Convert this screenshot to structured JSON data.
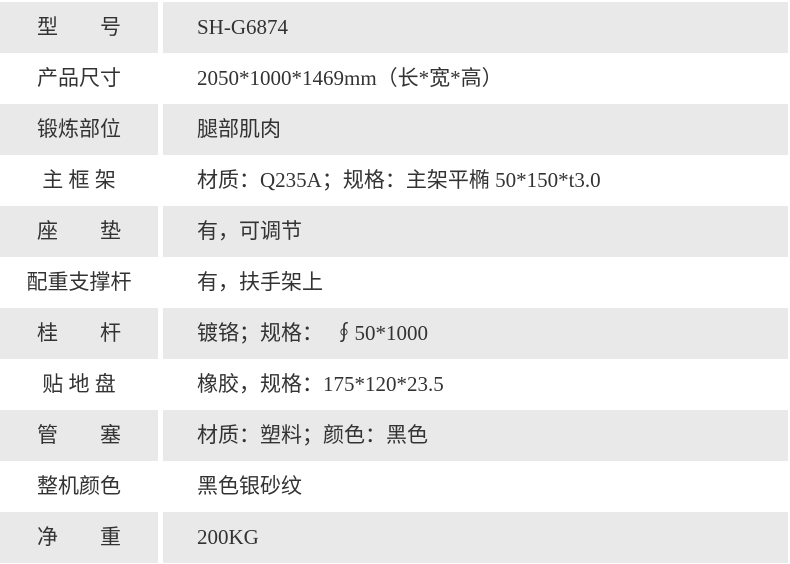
{
  "table": {
    "rows": [
      {
        "label": "型　　号",
        "value": "SH-G6874",
        "shaded": true
      },
      {
        "label": "产品尺寸",
        "value": "2050*1000*1469mm（长*宽*高）",
        "shaded": false
      },
      {
        "label": "锻炼部位",
        "value": "腿部肌肉",
        "shaded": true
      },
      {
        "label": "主 框 架",
        "value": "材质：Q235A；规格：主架平椭 50*150*t3.0",
        "shaded": false
      },
      {
        "label": "座　　垫",
        "value": "有，可调节",
        "shaded": true
      },
      {
        "label": "配重支撑杆",
        "value": "有，扶手架上",
        "shaded": false
      },
      {
        "label": "桂　　杆",
        "value": "镀铬；规格：　∮50*1000",
        "shaded": true
      },
      {
        "label": "贴 地 盘",
        "value": "橡胶，规格：175*120*23.5",
        "shaded": false
      },
      {
        "label": "管　　塞",
        "value": "材质：塑料；颜色：黑色",
        "shaded": true
      },
      {
        "label": "整机颜色",
        "value": "黑色银砂纹",
        "shaded": false
      },
      {
        "label": "净　　重",
        "value": "200KG",
        "shaded": true
      }
    ]
  },
  "colors": {
    "row_shaded": "#e9e9e9",
    "text": "#333333",
    "background": "#ffffff"
  }
}
